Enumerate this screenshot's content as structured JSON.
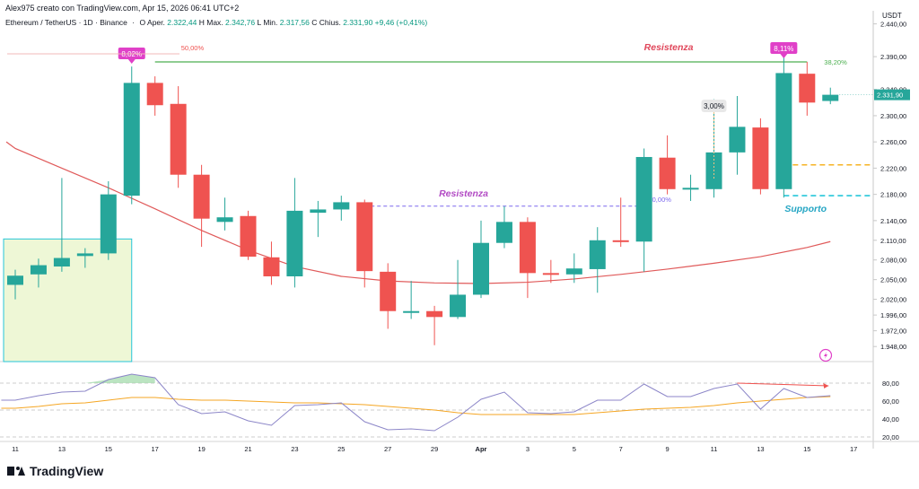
{
  "header": {
    "title": "Alex975 creato con TradingView.com, Apr 15, 2026 06:41 UTC+2"
  },
  "ohlc": {
    "symbol": "Ethereum / TetherUS · 1D · Binance",
    "open_label": "O",
    "open_prefix": "Aper.",
    "open": "2.322,44",
    "high_label": "H",
    "high_prefix": "Max.",
    "high": "2.342,76",
    "low_label": "L",
    "low_prefix": "Min.",
    "low": "2.317,56",
    "close_label": "C",
    "close_prefix": "Chius.",
    "close": "2.331,90",
    "change": "+9,46 (+0,41%)"
  },
  "footer": {
    "brand": "TradingView"
  },
  "colors": {
    "up": "#26a69a",
    "down": "#ef5350",
    "ma": "#e05a5a",
    "resistance_line": "#4caf50",
    "support_line": "#26c6da",
    "resistance_text": "#e0465a",
    "resistance_purple": "#b24bc4",
    "gold_line": "#f5b324",
    "rsi": "#8c86c8",
    "rsi_ma": "#f5a623",
    "badge": "#e040c8",
    "accumulation_zone": "#eef7d6"
  },
  "chart_data": [
    {
      "type": "candlestick",
      "currency_label": "USDT",
      "ylim": [
        1925,
        2460
      ],
      "y_ticks": [
        "2.440,00",
        "2.390,00",
        "2.340,00",
        "2.300,00",
        "2.260,00",
        "2.220,00",
        "2.180,00",
        "2.140,00",
        "2.110,00",
        "2.080,00",
        "2.050,00",
        "2.020,00",
        "1.996,00",
        "1.972,00",
        "1.948,00"
      ],
      "x_ticks": [
        "11",
        "13",
        "15",
        "17",
        "19",
        "21",
        "23",
        "25",
        "27",
        "29",
        "Apr",
        "3",
        "5",
        "7",
        "9",
        "11",
        "13",
        "15",
        "17"
      ],
      "current_price": "2.331,90",
      "candles": [
        {
          "date": "Mar 11",
          "o": 2042,
          "h": 2065,
          "l": 2020,
          "c": 2056
        },
        {
          "date": "Mar 12",
          "o": 2058,
          "h": 2082,
          "l": 2038,
          "c": 2072
        },
        {
          "date": "Mar 13",
          "o": 2070,
          "h": 2205,
          "l": 2062,
          "c": 2083
        },
        {
          "date": "Mar 14",
          "o": 2086,
          "h": 2098,
          "l": 2068,
          "c": 2090
        },
        {
          "date": "Mar 15",
          "o": 2090,
          "h": 2200,
          "l": 2080,
          "c": 2180
        },
        {
          "date": "Mar 16",
          "o": 2178,
          "h": 2375,
          "l": 2165,
          "c": 2350
        },
        {
          "date": "Mar 17",
          "o": 2350,
          "h": 2360,
          "l": 2300,
          "c": 2316
        },
        {
          "date": "Mar 18",
          "o": 2318,
          "h": 2345,
          "l": 2190,
          "c": 2210
        },
        {
          "date": "Mar 19",
          "o": 2210,
          "h": 2225,
          "l": 2100,
          "c": 2143
        },
        {
          "date": "Mar 20",
          "o": 2138,
          "h": 2175,
          "l": 2125,
          "c": 2145
        },
        {
          "date": "Mar 21",
          "o": 2147,
          "h": 2155,
          "l": 2080,
          "c": 2085
        },
        {
          "date": "Mar 22",
          "o": 2084,
          "h": 2108,
          "l": 2042,
          "c": 2055
        },
        {
          "date": "Mar 23",
          "o": 2055,
          "h": 2205,
          "l": 2038,
          "c": 2155
        },
        {
          "date": "Mar 24",
          "o": 2152,
          "h": 2170,
          "l": 2115,
          "c": 2157
        },
        {
          "date": "Mar 25",
          "o": 2157,
          "h": 2178,
          "l": 2140,
          "c": 2168
        },
        {
          "date": "Mar 26",
          "o": 2168,
          "h": 2172,
          "l": 2038,
          "c": 2063
        },
        {
          "date": "Mar 27",
          "o": 2062,
          "h": 2075,
          "l": 1975,
          "c": 2002
        },
        {
          "date": "Mar 28",
          "o": 2000,
          "h": 2048,
          "l": 1990,
          "c": 2002
        },
        {
          "date": "Mar 29",
          "o": 2002,
          "h": 2010,
          "l": 1950,
          "c": 1993
        },
        {
          "date": "Mar 30",
          "o": 1993,
          "h": 2080,
          "l": 1990,
          "c": 2027
        },
        {
          "date": "Mar 31",
          "o": 2027,
          "h": 2140,
          "l": 2022,
          "c": 2106
        },
        {
          "date": "Apr 1",
          "o": 2106,
          "h": 2162,
          "l": 2098,
          "c": 2138
        },
        {
          "date": "Apr 2",
          "o": 2138,
          "h": 2145,
          "l": 2022,
          "c": 2060
        },
        {
          "date": "Apr 3",
          "o": 2060,
          "h": 2080,
          "l": 2045,
          "c": 2058
        },
        {
          "date": "Apr 4",
          "o": 2058,
          "h": 2090,
          "l": 2045,
          "c": 2067
        },
        {
          "date": "Apr 5",
          "o": 2066,
          "h": 2130,
          "l": 2030,
          "c": 2110
        },
        {
          "date": "Apr 6",
          "o": 2110,
          "h": 2175,
          "l": 2100,
          "c": 2108
        },
        {
          "date": "Apr 7",
          "o": 2108,
          "h": 2250,
          "l": 2062,
          "c": 2237
        },
        {
          "date": "Apr 8",
          "o": 2236,
          "h": 2270,
          "l": 2180,
          "c": 2188
        },
        {
          "date": "Apr 9",
          "o": 2188,
          "h": 2210,
          "l": 2170,
          "c": 2190
        },
        {
          "date": "Apr 10",
          "o": 2188,
          "h": 2325,
          "l": 2175,
          "c": 2244
        },
        {
          "date": "Apr 11",
          "o": 2244,
          "h": 2330,
          "l": 2210,
          "c": 2283
        },
        {
          "date": "Apr 12",
          "o": 2282,
          "h": 2296,
          "l": 2180,
          "c": 2188
        },
        {
          "date": "Apr 13",
          "o": 2188,
          "h": 2390,
          "l": 2175,
          "c": 2365
        },
        {
          "date": "Apr 14",
          "o": 2364,
          "h": 2382,
          "l": 2300,
          "c": 2320
        },
        {
          "date": "Apr 15",
          "o": 2322.44,
          "h": 2342.76,
          "l": 2317.56,
          "c": 2331.9
        }
      ],
      "moving_average": [
        {
          "date": "Mar 11",
          "v": 2250
        },
        {
          "date": "Mar 13",
          "v": 2220
        },
        {
          "date": "Mar 15",
          "v": 2190
        },
        {
          "date": "Mar 17",
          "v": 2158
        },
        {
          "date": "Mar 19",
          "v": 2125
        },
        {
          "date": "Mar 21",
          "v": 2095
        },
        {
          "date": "Mar 23",
          "v": 2070
        },
        {
          "date": "Mar 25",
          "v": 2055
        },
        {
          "date": "Mar 27",
          "v": 2048
        },
        {
          "date": "Mar 29",
          "v": 2045
        },
        {
          "date": "Mar 31",
          "v": 2044
        },
        {
          "date": "Apr 2",
          "v": 2046
        },
        {
          "date": "Apr 4",
          "v": 2051
        },
        {
          "date": "Apr 6",
          "v": 2058
        },
        {
          "date": "Apr 8",
          "v": 2066
        },
        {
          "date": "Apr 10",
          "v": 2075
        },
        {
          "date": "Apr 12",
          "v": 2085
        },
        {
          "date": "Apr 14",
          "v": 2099
        },
        {
          "date": "Apr 15",
          "v": 2108
        }
      ],
      "levels": [
        {
          "label": "Resistenza",
          "price": 2382,
          "start": "Mar 17",
          "end": "Apr 14"
        },
        {
          "label": "Resistenza",
          "price": 2162,
          "start": "Mar 26",
          "end": "Apr 7"
        },
        {
          "label": "",
          "price": 2225,
          "start": "Apr 13",
          "end": "Apr 17"
        },
        {
          "label": "Supporto",
          "price": 2178,
          "start": "Apr 13",
          "end": "Apr 17"
        }
      ],
      "annotations": [
        {
          "text": "8,02%",
          "date": "Mar 16",
          "type": "badge"
        },
        {
          "text": "50,00%",
          "date": "Mar 17",
          "type": "fib"
        },
        {
          "text": "3,00%",
          "date": "Apr 10",
          "type": "tag"
        },
        {
          "text": "0,00%",
          "date": "Apr 7",
          "type": "fib"
        },
        {
          "text": "8,11%",
          "date": "Apr 13",
          "type": "badge"
        },
        {
          "text": "38,20%",
          "date": "Apr 14",
          "type": "fib"
        }
      ],
      "accumulation_zone": {
        "start": "Mar 11",
        "end": "Mar 16",
        "top": 2112,
        "bottom": 1925
      }
    },
    {
      "type": "line",
      "indicator": "RSI",
      "ylim": [
        15,
        95
      ],
      "y_ticks": [
        "80,00",
        "60,00",
        "40,00",
        "20,00"
      ],
      "levels": [
        80,
        50,
        20
      ],
      "series": [
        {
          "values": [
            61,
            66,
            70,
            71,
            84,
            90,
            86,
            56,
            46,
            48,
            38,
            33,
            55,
            56,
            58,
            37,
            28,
            29,
            27,
            42,
            62,
            70,
            47,
            46,
            48,
            61,
            61,
            79,
            65,
            65,
            74,
            79,
            51,
            74,
            64,
            66
          ]
        },
        {
          "values": [
            52,
            54,
            57,
            58,
            61,
            64,
            64,
            62,
            61,
            61,
            60,
            59,
            58,
            58,
            57,
            56,
            54,
            52,
            50,
            47,
            45,
            45,
            45,
            45,
            45,
            47,
            49,
            51,
            52,
            53,
            55,
            58,
            60,
            62,
            64,
            65
          ]
        }
      ]
    }
  ]
}
